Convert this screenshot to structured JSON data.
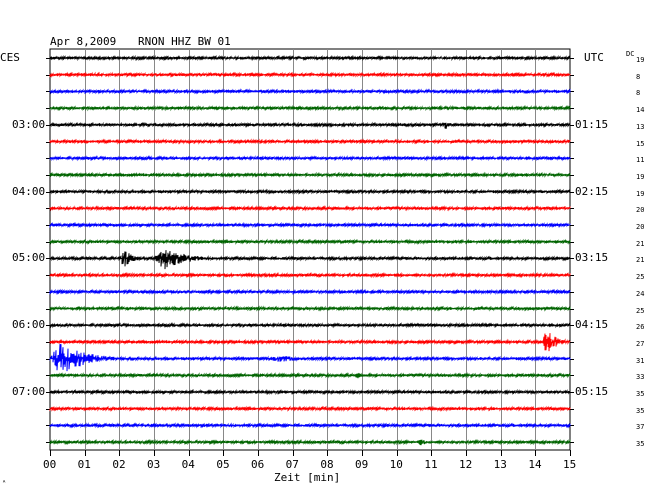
{
  "header": {
    "date": "Apr 8,2009",
    "station": "RNON HHZ BW 01",
    "left_tz": "CES",
    "right_tz": "UTC",
    "dc_label": "DC"
  },
  "left_times": [
    "03:00",
    "04:00",
    "05:00",
    "06:00",
    "07:00"
  ],
  "right_times": [
    "01:15",
    "02:15",
    "03:15",
    "04:15",
    "05:15"
  ],
  "dc_values": [
    "19",
    "8",
    "8",
    "14",
    "13",
    "15",
    "11",
    "19",
    "19",
    "20",
    "20",
    "21",
    "21",
    "25",
    "24",
    "25",
    "26",
    "27",
    "31",
    "33",
    "35",
    "35",
    "37",
    "35"
  ],
  "x_ticks": [
    "00",
    "01",
    "02",
    "03",
    "04",
    "05",
    "06",
    "07",
    "08",
    "09",
    "10",
    "11",
    "12",
    "13",
    "14",
    "15"
  ],
  "x_axis_label": "Zeit [min]",
  "trace_colors": [
    "#000000",
    "#ff0000",
    "#0000ff",
    "#006400"
  ],
  "events": [
    {
      "trace": 4,
      "start_min": 11.3,
      "end_min": 11.7,
      "amp": 7
    },
    {
      "trace": 12,
      "start_min": 2.0,
      "end_min": 2.8,
      "amp": 10
    },
    {
      "trace": 12,
      "start_min": 3.0,
      "end_min": 4.8,
      "amp": 12
    },
    {
      "trace": 17,
      "start_min": 14.2,
      "end_min": 15.0,
      "amp": 13
    },
    {
      "trace": 18,
      "start_min": 0.0,
      "end_min": 2.0,
      "amp": 18
    },
    {
      "trace": 18,
      "start_min": 6.3,
      "end_min": 8.0,
      "amp": 4
    },
    {
      "trace": 19,
      "start_min": 8.8,
      "end_min": 9.1,
      "amp": 5
    },
    {
      "trace": 23,
      "start_min": 10.6,
      "end_min": 11.0,
      "amp": 5
    }
  ]
}
